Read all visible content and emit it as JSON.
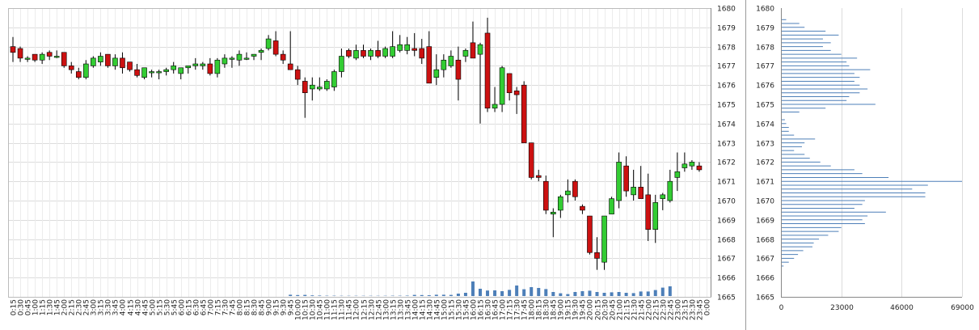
{
  "chart_data": [
    {
      "type": "candlestick",
      "title": "",
      "ylim": [
        1665,
        1680
      ],
      "y_ticks": [
        "1665",
        "1666",
        "1667",
        "1668",
        "1669",
        "1670",
        "1671",
        "1672",
        "1673",
        "1674",
        "1675",
        "1676",
        "1677",
        "1678",
        "1679",
        "1680"
      ],
      "x_ticks": [
        "0:15",
        "0:30",
        "0:45",
        "1:00",
        "1:15",
        "1:30",
        "1:45",
        "2:00",
        "2:15",
        "2:30",
        "2:45",
        "3:00",
        "3:15",
        "3:30",
        "3:45",
        "4:00",
        "4:15",
        "4:30",
        "4:45",
        "5:00",
        "5:15",
        "5:30",
        "5:45",
        "6:00",
        "6:15",
        "6:30",
        "6:45",
        "7:00",
        "7:15",
        "7:30",
        "7:45",
        "8:00",
        "8:15",
        "8:30",
        "8:45",
        "9:00",
        "9:15",
        "9:30",
        "9:45",
        "10:00",
        "10:15",
        "10:30",
        "10:45",
        "11:00",
        "11:15",
        "11:30",
        "11:45",
        "12:00",
        "12:15",
        "12:30",
        "12:45",
        "13:00",
        "13:15",
        "13:30",
        "13:45",
        "14:00",
        "14:15",
        "14:30",
        "14:45",
        "15:00",
        "15:15",
        "15:30",
        "15:45",
        "16:00",
        "16:15",
        "16:30",
        "16:45",
        "17:00",
        "17:15",
        "17:30",
        "17:45",
        "18:00",
        "18:15",
        "18:30",
        "18:45",
        "19:00",
        "19:15",
        "19:30",
        "19:45",
        "20:00",
        "20:15",
        "20:30",
        "20:45",
        "21:00",
        "21:15",
        "21:30",
        "21:45",
        "22:00",
        "22:15",
        "22:30",
        "22:45",
        "23:00",
        "23:15",
        "23:30",
        "23:45",
        "0:00"
      ],
      "up_color": "#33cc33",
      "down_color": "#cc1111",
      "volume_color": "#4d7fb8",
      "candles": [
        [
          1678.0,
          1678.5,
          1677.2,
          1677.7
        ],
        [
          1677.9,
          1678.0,
          1677.2,
          1677.4
        ],
        [
          1677.4,
          1677.5,
          1677.2,
          1677.4
        ],
        [
          1677.6,
          1677.6,
          1677.2,
          1677.3
        ],
        [
          1677.3,
          1677.7,
          1677.1,
          1677.6
        ],
        [
          1677.7,
          1677.8,
          1677.3,
          1677.5
        ],
        [
          1677.5,
          1677.8,
          1677.4,
          1677.5
        ],
        [
          1677.7,
          1677.7,
          1676.9,
          1677.0
        ],
        [
          1677.0,
          1677.2,
          1676.6,
          1676.8
        ],
        [
          1676.7,
          1676.9,
          1676.3,
          1676.4
        ],
        [
          1676.4,
          1677.3,
          1676.3,
          1677.1
        ],
        [
          1677.0,
          1677.5,
          1676.9,
          1677.4
        ],
        [
          1677.2,
          1677.7,
          1677.0,
          1677.5
        ],
        [
          1677.6,
          1677.6,
          1676.9,
          1677.0
        ],
        [
          1677.0,
          1677.6,
          1676.8,
          1677.4
        ],
        [
          1677.4,
          1677.7,
          1676.6,
          1676.9
        ],
        [
          1677.2,
          1677.2,
          1676.7,
          1676.8
        ],
        [
          1676.8,
          1677.1,
          1676.4,
          1676.5
        ],
        [
          1676.4,
          1676.9,
          1676.3,
          1676.9
        ],
        [
          1676.7,
          1676.8,
          1676.4,
          1676.7
        ],
        [
          1676.7,
          1676.8,
          1676.3,
          1676.7
        ],
        [
          1676.7,
          1676.9,
          1676.5,
          1676.8
        ],
        [
          1676.8,
          1677.2,
          1676.6,
          1677.0
        ],
        [
          1676.6,
          1676.9,
          1676.3,
          1676.9
        ],
        [
          1676.9,
          1677.0,
          1676.6,
          1677.0
        ],
        [
          1677.0,
          1677.4,
          1676.8,
          1677.1
        ],
        [
          1677.0,
          1677.2,
          1676.8,
          1677.1
        ],
        [
          1677.1,
          1677.4,
          1676.5,
          1676.6
        ],
        [
          1676.6,
          1677.4,
          1676.4,
          1677.3
        ],
        [
          1677.1,
          1677.6,
          1676.9,
          1677.4
        ],
        [
          1677.4,
          1677.5,
          1676.9,
          1677.4
        ],
        [
          1677.3,
          1677.8,
          1677.0,
          1677.6
        ],
        [
          1677.4,
          1677.7,
          1677.3,
          1677.4
        ],
        [
          1677.5,
          1677.6,
          1677.3,
          1677.6
        ],
        [
          1677.7,
          1677.9,
          1677.3,
          1677.8
        ],
        [
          1677.9,
          1678.6,
          1677.8,
          1678.4
        ],
        [
          1678.3,
          1678.8,
          1677.5,
          1677.6
        ],
        [
          1677.6,
          1677.8,
          1677.1,
          1677.3
        ],
        [
          1677.1,
          1678.8,
          1676.9,
          1676.8
        ],
        [
          1676.8,
          1677.0,
          1676.0,
          1676.3
        ],
        [
          1676.2,
          1676.4,
          1674.3,
          1675.6
        ],
        [
          1675.8,
          1676.4,
          1675.2,
          1676.0
        ],
        [
          1675.8,
          1676.4,
          1675.7,
          1675.9
        ],
        [
          1675.8,
          1676.3,
          1675.7,
          1676.2
        ],
        [
          1675.9,
          1676.8,
          1675.7,
          1676.7
        ],
        [
          1676.7,
          1677.9,
          1676.4,
          1677.5
        ],
        [
          1677.8,
          1677.9,
          1677.4,
          1677.5
        ],
        [
          1677.4,
          1678.1,
          1677.3,
          1677.8
        ],
        [
          1677.8,
          1678.1,
          1677.4,
          1677.5
        ],
        [
          1677.5,
          1677.9,
          1677.3,
          1677.8
        ],
        [
          1677.8,
          1678.3,
          1677.4,
          1677.5
        ],
        [
          1677.5,
          1678.0,
          1677.4,
          1677.9
        ],
        [
          1677.5,
          1678.8,
          1677.4,
          1678.0
        ],
        [
          1677.8,
          1678.6,
          1677.7,
          1678.1
        ],
        [
          1677.8,
          1678.5,
          1677.6,
          1678.1
        ],
        [
          1677.9,
          1678.7,
          1677.5,
          1677.8
        ],
        [
          1677.9,
          1678.4,
          1677.1,
          1677.4
        ],
        [
          1678.0,
          1678.8,
          1676.1,
          1676.1
        ],
        [
          1676.4,
          1677.6,
          1676.0,
          1676.8
        ],
        [
          1676.8,
          1677.6,
          1676.4,
          1677.3
        ],
        [
          1677.0,
          1677.8,
          1676.9,
          1677.5
        ],
        [
          1677.3,
          1678.0,
          1675.2,
          1676.3
        ],
        [
          1677.5,
          1677.9,
          1677.2,
          1677.8
        ],
        [
          1678.2,
          1679.3,
          1677.4,
          1677.4
        ],
        [
          1677.6,
          1678.2,
          1674.0,
          1678.1
        ],
        [
          1678.7,
          1679.5,
          1674.6,
          1674.8
        ],
        [
          1674.8,
          1675.9,
          1674.6,
          1675.0
        ],
        [
          1675.0,
          1677.0,
          1674.6,
          1676.9
        ],
        [
          1676.6,
          1676.6,
          1675.2,
          1675.6
        ],
        [
          1675.7,
          1675.9,
          1674.5,
          1675.5
        ],
        [
          1676.0,
          1676.2,
          1673.0,
          1673.0
        ],
        [
          1673.0,
          1673.0,
          1671.1,
          1671.2
        ],
        [
          1671.3,
          1671.6,
          1671.0,
          1671.2
        ],
        [
          1671.0,
          1671.3,
          1669.3,
          1669.5
        ],
        [
          1669.3,
          1669.6,
          1668.1,
          1669.4
        ],
        [
          1669.5,
          1670.3,
          1669.1,
          1670.2
        ],
        [
          1670.3,
          1671.1,
          1669.9,
          1670.5
        ],
        [
          1671.0,
          1671.1,
          1670.0,
          1670.2
        ],
        [
          1669.7,
          1669.8,
          1669.3,
          1669.5
        ],
        [
          1669.2,
          1669.2,
          1667.2,
          1667.3
        ],
        [
          1667.3,
          1668.1,
          1666.4,
          1667.0
        ],
        [
          1666.8,
          1669.2,
          1666.4,
          1669.2
        ],
        [
          1669.3,
          1670.2,
          1669.3,
          1670.1
        ],
        [
          1670.0,
          1672.5,
          1669.6,
          1672.0
        ],
        [
          1671.8,
          1672.3,
          1670.2,
          1670.5
        ],
        [
          1670.3,
          1671.6,
          1670.0,
          1670.7
        ],
        [
          1670.7,
          1671.8,
          1670.3,
          1670.1
        ],
        [
          1670.3,
          1671.4,
          1667.9,
          1668.5
        ],
        [
          1668.5,
          1670.3,
          1667.8,
          1669.9
        ],
        [
          1670.1,
          1670.4,
          1669.5,
          1670.3
        ],
        [
          1670.0,
          1671.6,
          1669.9,
          1671.0
        ],
        [
          1671.2,
          1672.5,
          1670.5,
          1671.5
        ],
        [
          1671.7,
          1672.5,
          1671.5,
          1671.9
        ],
        [
          1671.8,
          1672.1,
          1671.6,
          1672.0
        ],
        [
          1671.8,
          1672.0,
          1671.5,
          1671.6
        ],
        [
          null,
          null,
          null,
          null
        ]
      ],
      "volume_scale_max": 12000,
      "volumes": [
        0,
        0,
        0,
        0,
        0,
        0,
        0,
        0,
        0,
        0,
        0,
        0,
        0,
        0,
        0,
        0,
        0,
        0,
        0,
        0,
        0,
        0,
        0,
        0,
        0,
        0,
        0,
        0,
        0,
        0,
        0,
        0,
        0,
        0,
        0,
        0,
        0,
        0,
        800,
        600,
        700,
        400,
        300,
        200,
        200,
        150,
        150,
        150,
        150,
        150,
        150,
        150,
        200,
        200,
        250,
        700,
        600,
        500,
        800,
        800,
        700,
        1500,
        2000,
        9000,
        4500,
        3400,
        3500,
        3000,
        3800,
        6500,
        4200,
        5500,
        5000,
        4300,
        2500,
        1700,
        1200,
        2500,
        3000,
        3300,
        2500,
        2000,
        2300,
        2500,
        2000,
        1800,
        2800,
        2800,
        3700,
        5200,
        6000,
        0,
        0,
        0,
        0,
        0
      ]
    },
    {
      "type": "bar",
      "orientation": "horizontal",
      "title": "",
      "ylim": [
        1665,
        1680
      ],
      "y_ticks": [
        "1665",
        "1666",
        "1667",
        "1668",
        "1669",
        "1670",
        "1671",
        "1672",
        "1673",
        "1674",
        "1675",
        "1676",
        "1677",
        "1678",
        "1679",
        "1680"
      ],
      "x_ticks": [
        "0",
        "23000",
        "46000",
        "69000"
      ],
      "xlim": [
        0,
        69000
      ],
      "bar_color": "#4d7fb8",
      "profile": [
        [
          1666.6,
          1000
        ],
        [
          1666.8,
          3000
        ],
        [
          1667.0,
          5000
        ],
        [
          1667.2,
          6500
        ],
        [
          1667.4,
          8500
        ],
        [
          1667.6,
          12000
        ],
        [
          1667.8,
          12500
        ],
        [
          1668.0,
          14500
        ],
        [
          1668.2,
          18000
        ],
        [
          1668.4,
          22000
        ],
        [
          1668.6,
          23000
        ],
        [
          1668.8,
          32000
        ],
        [
          1669.0,
          31000
        ],
        [
          1669.2,
          33000
        ],
        [
          1669.4,
          40000
        ],
        [
          1669.6,
          28000
        ],
        [
          1669.8,
          31000
        ],
        [
          1670.0,
          32000
        ],
        [
          1670.2,
          55000
        ],
        [
          1670.4,
          55000
        ],
        [
          1670.6,
          50000
        ],
        [
          1670.8,
          56000
        ],
        [
          1671.0,
          69000
        ],
        [
          1671.2,
          41000
        ],
        [
          1671.4,
          31000
        ],
        [
          1671.6,
          28000
        ],
        [
          1671.8,
          19000
        ],
        [
          1672.0,
          15000
        ],
        [
          1672.2,
          11000
        ],
        [
          1672.4,
          9000
        ],
        [
          1672.6,
          5000
        ],
        [
          1672.8,
          8000
        ],
        [
          1673.0,
          9000
        ],
        [
          1673.2,
          13000
        ],
        [
          1673.4,
          5000
        ],
        [
          1673.6,
          3000
        ],
        [
          1673.8,
          3000
        ],
        [
          1674.0,
          2000
        ],
        [
          1674.2,
          1500
        ],
        [
          1674.6,
          7000
        ],
        [
          1674.8,
          17000
        ],
        [
          1675.0,
          36000
        ],
        [
          1675.2,
          25000
        ],
        [
          1675.4,
          26000
        ],
        [
          1675.6,
          30000
        ],
        [
          1675.8,
          33000
        ],
        [
          1676.0,
          30000
        ],
        [
          1676.2,
          28000
        ],
        [
          1676.4,
          30000
        ],
        [
          1676.6,
          28000
        ],
        [
          1676.8,
          34000
        ],
        [
          1677.0,
          26000
        ],
        [
          1677.2,
          25000
        ],
        [
          1677.4,
          29000
        ],
        [
          1677.6,
          23000
        ],
        [
          1677.8,
          19000
        ],
        [
          1678.0,
          16000
        ],
        [
          1678.2,
          19000
        ],
        [
          1678.4,
          16000
        ],
        [
          1678.6,
          22000
        ],
        [
          1678.8,
          17000
        ],
        [
          1679.0,
          9000
        ],
        [
          1679.2,
          7000
        ],
        [
          1679.4,
          2000
        ]
      ]
    }
  ]
}
